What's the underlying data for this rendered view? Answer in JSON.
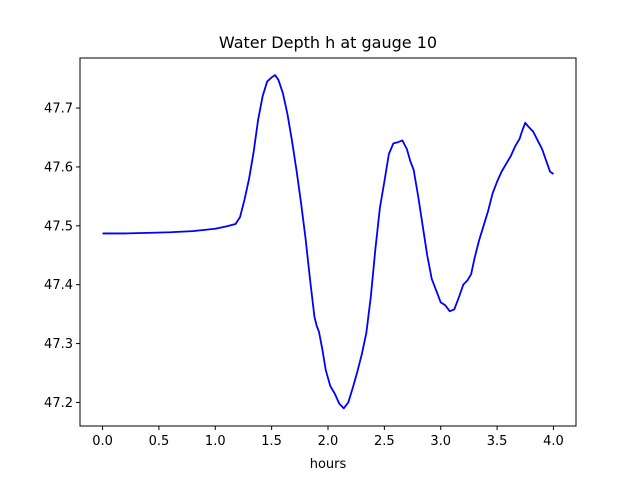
{
  "chart_data": {
    "type": "line",
    "title": "Water Depth h at gauge 10",
    "xlabel": "hours",
    "ylabel": "",
    "xlim": [
      -0.2,
      4.2
    ],
    "ylim": [
      47.16,
      47.785
    ],
    "xticks": [
      0.0,
      0.5,
      1.0,
      1.5,
      2.0,
      2.5,
      3.0,
      3.5,
      4.0
    ],
    "xtick_labels": [
      "0.0",
      "0.5",
      "1.0",
      "1.5",
      "2.0",
      "2.5",
      "3.0",
      "3.5",
      "4.0"
    ],
    "yticks": [
      47.2,
      47.3,
      47.4,
      47.5,
      47.6,
      47.7
    ],
    "ytick_labels": [
      "47.2",
      "47.3",
      "47.4",
      "47.5",
      "47.6",
      "47.7"
    ],
    "grid": false,
    "legend": "none",
    "series": [
      {
        "color": "#0000ff",
        "x": [
          0.0,
          0.2,
          0.4,
          0.6,
          0.8,
          1.0,
          1.1,
          1.18,
          1.22,
          1.26,
          1.3,
          1.34,
          1.38,
          1.42,
          1.46,
          1.5,
          1.53,
          1.56,
          1.6,
          1.64,
          1.68,
          1.72,
          1.76,
          1.8,
          1.84,
          1.88,
          1.9,
          1.92,
          1.95,
          1.98,
          2.02,
          2.06,
          2.1,
          2.14,
          2.18,
          2.22,
          2.26,
          2.3,
          2.34,
          2.38,
          2.42,
          2.46,
          2.5,
          2.54,
          2.58,
          2.62,
          2.66,
          2.7,
          2.73,
          2.76,
          2.8,
          2.84,
          2.88,
          2.92,
          2.96,
          3.0,
          3.04,
          3.08,
          3.12,
          3.16,
          3.2,
          3.24,
          3.27,
          3.3,
          3.34,
          3.38,
          3.42,
          3.46,
          3.5,
          3.54,
          3.58,
          3.62,
          3.66,
          3.7,
          3.72,
          3.75,
          3.78,
          3.82,
          3.86,
          3.9,
          3.94,
          3.97,
          4.0
        ],
        "y": [
          47.487,
          47.487,
          47.488,
          47.489,
          47.491,
          47.495,
          47.499,
          47.503,
          47.515,
          47.545,
          47.58,
          47.625,
          47.68,
          47.72,
          47.745,
          47.752,
          47.756,
          47.748,
          47.725,
          47.69,
          47.645,
          47.595,
          47.54,
          47.48,
          47.41,
          47.345,
          47.33,
          47.32,
          47.29,
          47.255,
          47.228,
          47.215,
          47.198,
          47.19,
          47.2,
          47.225,
          47.252,
          47.282,
          47.318,
          47.38,
          47.46,
          47.53,
          47.575,
          47.622,
          47.64,
          47.642,
          47.645,
          47.63,
          47.61,
          47.595,
          47.55,
          47.5,
          47.45,
          47.41,
          47.39,
          47.37,
          47.365,
          47.355,
          47.358,
          47.378,
          47.4,
          47.408,
          47.418,
          47.445,
          47.475,
          47.5,
          47.525,
          47.555,
          47.575,
          47.592,
          47.605,
          47.618,
          47.635,
          47.648,
          47.66,
          47.675,
          47.668,
          47.66,
          47.645,
          47.63,
          47.608,
          47.592,
          47.588
        ]
      }
    ]
  }
}
